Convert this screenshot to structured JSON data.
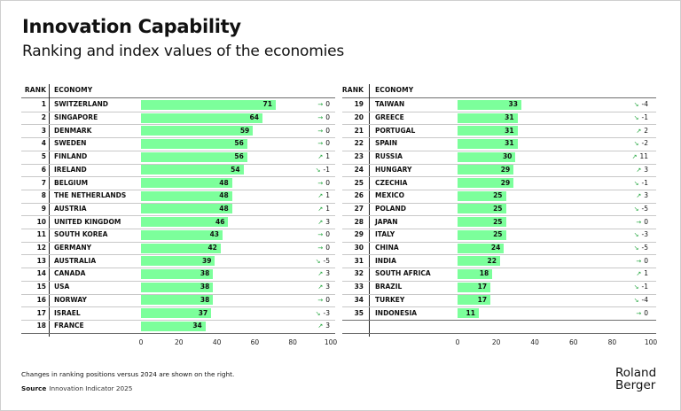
{
  "header": {
    "title": "Innovation Capability",
    "subtitle": "Ranking and index values of the economies"
  },
  "columns": {
    "rank": "RANK",
    "economy": "ECONOMY"
  },
  "footer": {
    "note": "Changes in ranking positions versus 2024 are shown on the right.",
    "source_label": "Source",
    "source_text": "Innovation Indicator 2025",
    "logo_line1": "Roland",
    "logo_line2": "Berger"
  },
  "colors": {
    "bar": "#7cff9b",
    "arrow": "#1fa43a"
  },
  "icons": {
    "same": "→",
    "up": "↗",
    "down": "↘"
  },
  "chart_data": {
    "type": "bar",
    "orientation": "horizontal",
    "title": "Innovation Capability",
    "subtitle": "Ranking and index values of the economies",
    "xlim": [
      0,
      100
    ],
    "x_ticks": [
      "0",
      "20",
      "40",
      "60",
      "80",
      "100"
    ],
    "grid": false,
    "legend": "none",
    "tables": [
      {
        "rows": [
          {
            "rank": "1",
            "economy": "SWITZERLAND",
            "value": 71,
            "dir": "same",
            "change": "0"
          },
          {
            "rank": "2",
            "economy": "SINGAPORE",
            "value": 64,
            "dir": "same",
            "change": "0"
          },
          {
            "rank": "3",
            "economy": "DENMARK",
            "value": 59,
            "dir": "same",
            "change": "0"
          },
          {
            "rank": "4",
            "economy": "SWEDEN",
            "value": 56,
            "dir": "same",
            "change": "0"
          },
          {
            "rank": "5",
            "economy": "FINLAND",
            "value": 56,
            "dir": "up",
            "change": "1"
          },
          {
            "rank": "6",
            "economy": "IRELAND",
            "value": 54,
            "dir": "down",
            "change": "-1"
          },
          {
            "rank": "7",
            "economy": "BELGIUM",
            "value": 48,
            "dir": "same",
            "change": "0"
          },
          {
            "rank": "8",
            "economy": "THE NETHERLANDS",
            "value": 48,
            "dir": "up",
            "change": "1"
          },
          {
            "rank": "9",
            "economy": "AUSTRIA",
            "value": 48,
            "dir": "up",
            "change": "1"
          },
          {
            "rank": "10",
            "economy": "UNITED KINGDOM",
            "value": 46,
            "dir": "up",
            "change": "3"
          },
          {
            "rank": "11",
            "economy": "SOUTH KOREA",
            "value": 43,
            "dir": "same",
            "change": "0"
          },
          {
            "rank": "12",
            "economy": "GERMANY",
            "value": 42,
            "dir": "same",
            "change": "0"
          },
          {
            "rank": "13",
            "economy": "AUSTRALIA",
            "value": 39,
            "dir": "down",
            "change": "-5"
          },
          {
            "rank": "14",
            "economy": "CANADA",
            "value": 38,
            "dir": "up",
            "change": "3"
          },
          {
            "rank": "15",
            "economy": "USA",
            "value": 38,
            "dir": "up",
            "change": "3"
          },
          {
            "rank": "16",
            "economy": "NORWAY",
            "value": 38,
            "dir": "same",
            "change": "0"
          },
          {
            "rank": "17",
            "economy": "ISRAEL",
            "value": 37,
            "dir": "down",
            "change": "-3"
          },
          {
            "rank": "18",
            "economy": "FRANCE",
            "value": 34,
            "dir": "up",
            "change": "3"
          }
        ]
      },
      {
        "rows": [
          {
            "rank": "19",
            "economy": "TAIWAN",
            "value": 33,
            "dir": "down",
            "change": "-4"
          },
          {
            "rank": "20",
            "economy": "GREECE",
            "value": 31,
            "dir": "down",
            "change": "-1"
          },
          {
            "rank": "21",
            "economy": "PORTUGAL",
            "value": 31,
            "dir": "up",
            "change": "2"
          },
          {
            "rank": "22",
            "economy": "SPAIN",
            "value": 31,
            "dir": "down",
            "change": "-2"
          },
          {
            "rank": "23",
            "economy": "RUSSIA",
            "value": 30,
            "dir": "up",
            "change": "11"
          },
          {
            "rank": "24",
            "economy": "HUNGARY",
            "value": 29,
            "dir": "up",
            "change": "3"
          },
          {
            "rank": "25",
            "economy": "CZECHIA",
            "value": 29,
            "dir": "down",
            "change": "-1"
          },
          {
            "rank": "26",
            "economy": "MEXICO",
            "value": 25,
            "dir": "up",
            "change": "3"
          },
          {
            "rank": "27",
            "economy": "POLAND",
            "value": 25,
            "dir": "down",
            "change": "-5"
          },
          {
            "rank": "28",
            "economy": "JAPAN",
            "value": 25,
            "dir": "same",
            "change": "0"
          },
          {
            "rank": "29",
            "economy": "ITALY",
            "value": 25,
            "dir": "down",
            "change": "-3"
          },
          {
            "rank": "30",
            "economy": "CHINA",
            "value": 24,
            "dir": "down",
            "change": "-5"
          },
          {
            "rank": "31",
            "economy": "INDIA",
            "value": 22,
            "dir": "same",
            "change": "0"
          },
          {
            "rank": "32",
            "economy": "SOUTH AFRICA",
            "value": 18,
            "dir": "up",
            "change": "1"
          },
          {
            "rank": "33",
            "economy": "BRAZIL",
            "value": 17,
            "dir": "down",
            "change": "-1"
          },
          {
            "rank": "34",
            "economy": "TURKEY",
            "value": 17,
            "dir": "down",
            "change": "-4"
          },
          {
            "rank": "35",
            "economy": "INDONESIA",
            "value": 11,
            "dir": "same",
            "change": "0"
          }
        ]
      }
    ]
  }
}
